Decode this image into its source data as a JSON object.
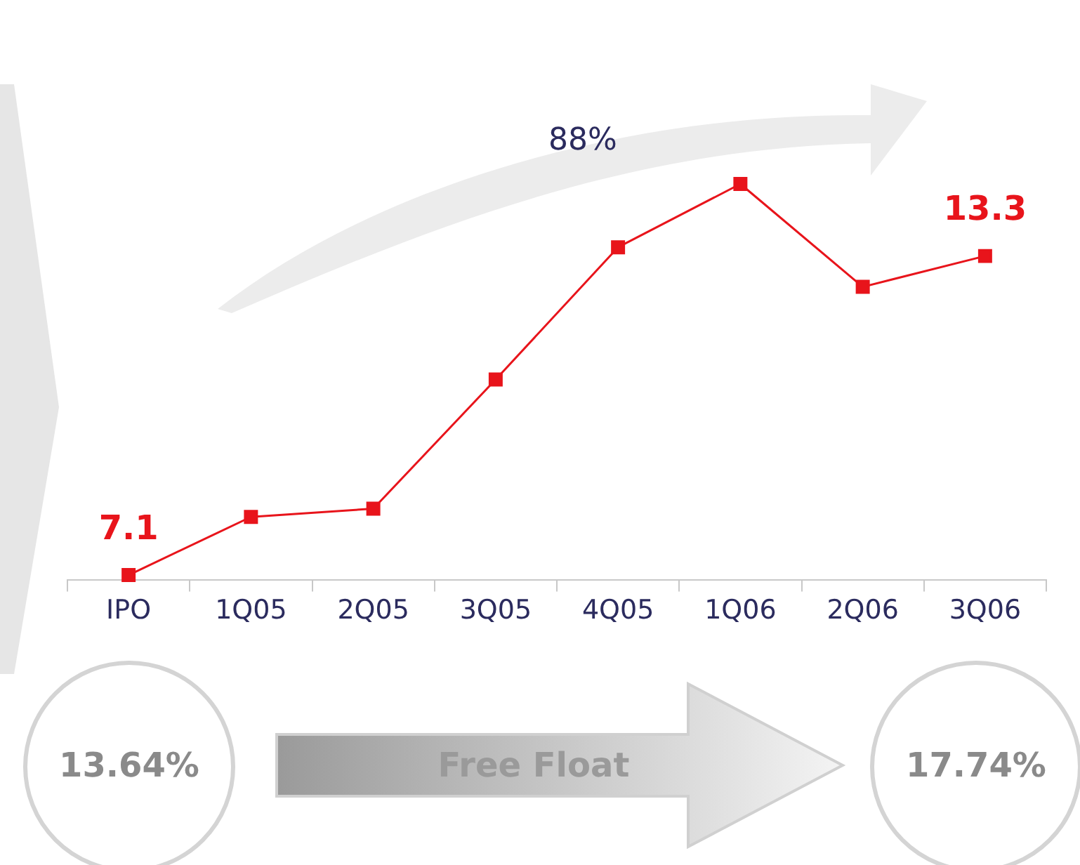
{
  "chart_data": {
    "type": "line",
    "categories": [
      "IPO",
      "1Q05",
      "2Q05",
      "3Q05",
      "4Q05",
      "1Q06",
      "2Q06",
      "3Q06"
    ],
    "series": [
      {
        "color": "#e8141b",
        "values": [
          7.1,
          8.23,
          8.39,
          10.9,
          13.47,
          14.7,
          12.7,
          13.3
        ],
        "value_labels": [
          "7.1",
          null,
          null,
          null,
          null,
          null,
          null,
          "13.3"
        ]
      }
    ],
    "marker": "square",
    "line_style": "solid",
    "grid": false,
    "legend": false,
    "tick_labels": "x",
    "annotations": [
      "88%",
      "13.64%",
      "Free Float",
      "17.74%"
    ]
  }
}
